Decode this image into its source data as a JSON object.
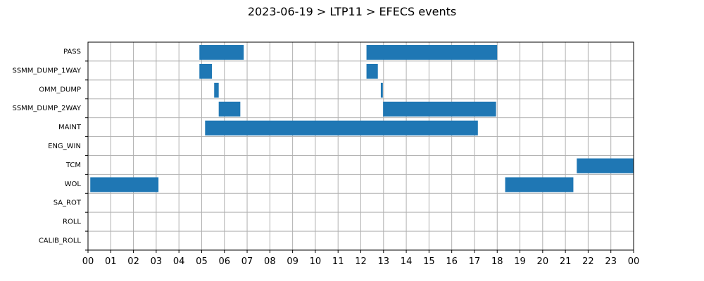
{
  "chart_data": {
    "type": "gantt",
    "title": "2023-06-19 > LTP11 > EFECS events",
    "x_ticks": [
      "00",
      "01",
      "02",
      "03",
      "04",
      "05",
      "06",
      "07",
      "08",
      "09",
      "10",
      "11",
      "12",
      "13",
      "14",
      "15",
      "16",
      "17",
      "18",
      "19",
      "20",
      "21",
      "22",
      "23",
      "00"
    ],
    "x_range_hours": [
      0,
      24
    ],
    "grid": true,
    "bar_color": "#1f77b4",
    "categories": [
      "PASS",
      "SSMM_DUMP_1WAY",
      "OMM_DUMP",
      "SSMM_DUMP_2WAY",
      "MAINT",
      "ENG_WIN",
      "TCM",
      "WOL",
      "SA_ROT",
      "ROLL",
      "CALIB_ROLL"
    ],
    "events": [
      {
        "category": "PASS",
        "start_hour": 4.9,
        "end_hour": 6.85
      },
      {
        "category": "PASS",
        "start_hour": 12.25,
        "end_hour": 18.0
      },
      {
        "category": "SSMM_DUMP_1WAY",
        "start_hour": 4.9,
        "end_hour": 5.45
      },
      {
        "category": "SSMM_DUMP_1WAY",
        "start_hour": 12.25,
        "end_hour": 12.75
      },
      {
        "category": "OMM_DUMP",
        "start_hour": 5.55,
        "end_hour": 5.75
      },
      {
        "category": "OMM_DUMP",
        "start_hour": 12.88,
        "end_hour": 12.97
      },
      {
        "category": "SSMM_DUMP_2WAY",
        "start_hour": 5.75,
        "end_hour": 6.7
      },
      {
        "category": "SSMM_DUMP_2WAY",
        "start_hour": 12.98,
        "end_hour": 17.95
      },
      {
        "category": "MAINT",
        "start_hour": 5.15,
        "end_hour": 17.15
      },
      {
        "category": "TCM",
        "start_hour": 21.5,
        "end_hour": 24.0
      },
      {
        "category": "WOL",
        "start_hour": 0.1,
        "end_hour": 3.1
      },
      {
        "category": "WOL",
        "start_hour": 18.35,
        "end_hour": 21.35
      }
    ]
  }
}
